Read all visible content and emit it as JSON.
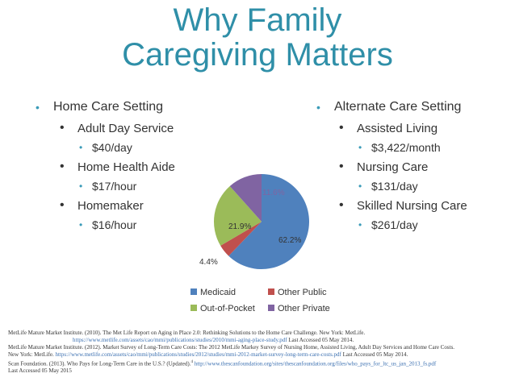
{
  "title_line1": "Why Family",
  "title_line2": "Caregiving Matters",
  "left": {
    "heading": "Home Care Setting",
    "items": [
      {
        "label": "Adult Day Service",
        "cost": "$40/day"
      },
      {
        "label": "Home Health Aide",
        "cost": "$17/hour"
      },
      {
        "label": "Homemaker",
        "cost": "$16/hour"
      }
    ]
  },
  "right": {
    "heading": "Alternate Care Setting",
    "items": [
      {
        "label": "Assisted Living",
        "cost": "$3,422/month"
      },
      {
        "label": "Nursing Care",
        "cost": "$131/day"
      },
      {
        "label": "Skilled Nursing Care",
        "cost": "$261/day"
      }
    ]
  },
  "chart_data": {
    "type": "pie",
    "categories": [
      "Medicaid",
      "Other Public",
      "Out-of-Pocket",
      "Other Private"
    ],
    "values": [
      62.2,
      4.4,
      21.9,
      11.6
    ],
    "labels": [
      "62.2%",
      "4.4%",
      "21.9%",
      "11.6%"
    ],
    "colors": [
      "#4f81bd",
      "#c0504d",
      "#9bbb59",
      "#8064a2"
    ],
    "label_colors": [
      "#333333",
      "#333333",
      "#333333",
      "#8064a2"
    ],
    "legend_position": "bottom"
  },
  "references": {
    "line1": "MetLife Mature Market Institute. (2010). The Met Life Report on Aging in Place 2.0: Rethinking Solutions to the Home Care Challenge. New York: MetLife.",
    "line2_link": "https://www.metlife.com/assets/cao/mmi/publications/studies/2010/mmi-aging-place-study.pdf",
    "line2_rest": "Last Accessed 05 May 2014.",
    "line3": "MetLife Mature Market Institute. (2012). Market Survey of Long-Term Care Costs: The 2012 MetLife Markey Survey of Nursing Home, Assisted Living, Adult Day Services and Home Care Costs.",
    "line4_start": "New York: MetLife.",
    "line4_link": "https://www.metlife.com/assets/cao/mmi/publications/studies/2012/studies/mmi-2012-market-survey-long-term-care-costs.pdf",
    "line4_rest": "Last Accessed 05 May 2014.",
    "line5_start": "Scan Foundation. (2013). Who Pays for Long-Term Care in the U.S.? (Updated).",
    "line5_sup": "4",
    "line5_link": "http://www.thescanfoundation.org/sites/thescanfoundation.org/files/who_pays_for_ltc_us_jan_2013_fs.pdf",
    "line6": "Last Accessed 05 May 2015"
  }
}
